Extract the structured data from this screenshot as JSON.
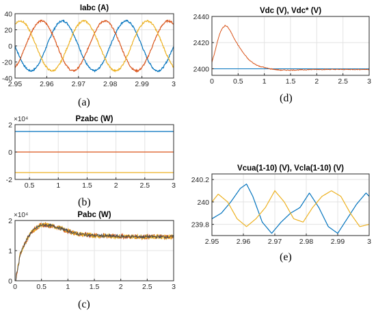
{
  "captions": [
    "(a)",
    "(b)",
    "(c)",
    "(d)",
    "(e)"
  ],
  "chart_data": [
    {
      "id": "a",
      "type": "line",
      "title": "Iabc (A)",
      "xlabel": "",
      "ylabel": "",
      "xlim": [
        2.95,
        3
      ],
      "ylim": [
        -40,
        40
      ],
      "xticks": [
        2.95,
        2.96,
        2.97,
        2.98,
        2.99,
        3
      ],
      "xtick_labels": [
        "2.95",
        "2.96",
        "2.97",
        "2.98",
        "2.99",
        "3"
      ],
      "yticks": [
        -40,
        -20,
        0,
        20,
        40
      ],
      "ytick_labels": [
        "-40",
        "-20",
        "0",
        "20",
        "40"
      ],
      "grid": true,
      "series": [
        {
          "color": "#0072BD",
          "amplitude": 31,
          "frequency_hz": 50,
          "phase_deg": 0,
          "ripple": 2.2
        },
        {
          "color": "#D95319",
          "amplitude": 31,
          "frequency_hz": 50,
          "phase_deg": 120,
          "ripple": 2.2
        },
        {
          "color": "#EDB120",
          "amplitude": 31,
          "frequency_hz": 50,
          "phase_deg": -120,
          "ripple": 2.2
        }
      ]
    },
    {
      "id": "b",
      "type": "line",
      "title": "Pzabc (W)",
      "exponent_label": "×10⁴",
      "xlim": [
        0.25,
        3
      ],
      "ylim": [
        -2,
        2
      ],
      "xticks": [
        0.5,
        1,
        1.5,
        2,
        2.5,
        3
      ],
      "xtick_labels": [
        "0.5",
        "1",
        "1.5",
        "2",
        "2.5",
        "3"
      ],
      "yticks": [
        -2,
        0,
        2
      ],
      "ytick_labels": [
        "-2",
        "0",
        "2"
      ],
      "grid": true,
      "series": [
        {
          "color": "#0072BD",
          "constant": 1.5
        },
        {
          "color": "#D95319",
          "constant": 0
        },
        {
          "color": "#EDB120",
          "constant": -1.5
        }
      ]
    },
    {
      "id": "c",
      "type": "line",
      "title": "Pabc (W)",
      "exponent_label": "×10⁴",
      "xlim": [
        0,
        3
      ],
      "ylim": [
        0,
        2
      ],
      "xticks": [
        0,
        0.5,
        1,
        1.5,
        2,
        2.5,
        3
      ],
      "xtick_labels": [
        "0",
        "0.5",
        "1",
        "1.5",
        "2",
        "2.5",
        "3"
      ],
      "yticks": [
        0,
        1,
        2
      ],
      "ytick_labels": [
        "0",
        "1",
        "2"
      ],
      "grid": true,
      "envelope": {
        "x": [
          0,
          0.05,
          0.1,
          0.2,
          0.3,
          0.4,
          0.5,
          0.6,
          0.8,
          1.0,
          1.2,
          1.5,
          2.0,
          2.5,
          3.0
        ],
        "y": [
          0,
          0.4,
          0.9,
          1.3,
          1.6,
          1.75,
          1.85,
          1.85,
          1.78,
          1.65,
          1.55,
          1.5,
          1.47,
          1.46,
          1.46
        ]
      },
      "series": [
        {
          "color": "#D95319",
          "ripple": 0.08
        },
        {
          "color": "#EDB120",
          "ripple": 0.08
        },
        {
          "color": "#4D4D4D",
          "ripple": 0.05
        }
      ]
    },
    {
      "id": "d",
      "type": "line",
      "title": "Vdc (V), Vdc* (V)",
      "xlim": [
        0,
        3
      ],
      "ylim": [
        2395,
        2440
      ],
      "xticks": [
        0,
        0.5,
        1,
        1.5,
        2,
        2.5,
        3
      ],
      "xtick_labels": [
        "0",
        "0.5",
        "1",
        "1.5",
        "2",
        "2.5",
        "3"
      ],
      "yticks": [
        2400,
        2420,
        2440
      ],
      "ytick_labels": [
        "2400",
        "2420",
        "2440"
      ],
      "grid": true,
      "series": [
        {
          "name": "Vdc*",
          "color": "#0072BD",
          "constant": 2400
        },
        {
          "name": "Vdc",
          "color": "#D95319",
          "x": [
            0,
            0.05,
            0.1,
            0.15,
            0.2,
            0.25,
            0.3,
            0.35,
            0.4,
            0.5,
            0.6,
            0.7,
            0.8,
            0.9,
            1.0,
            1.1,
            1.2,
            1.3,
            1.5,
            2.0,
            2.5,
            3.0
          ],
          "y": [
            2405,
            2412,
            2420,
            2427,
            2431,
            2433,
            2432,
            2429,
            2425,
            2418,
            2412,
            2407,
            2404,
            2402,
            2401,
            2400,
            2399.5,
            2399,
            2399,
            2399.5,
            2399.5,
            2399.5
          ],
          "noise": 0.6
        }
      ]
    },
    {
      "id": "e",
      "type": "line",
      "title": "Vcua(1-10) (V), Vcla(1-10) (V)",
      "xlim": [
        2.95,
        3
      ],
      "ylim": [
        239.7,
        240.25
      ],
      "xticks": [
        2.95,
        2.96,
        2.97,
        2.98,
        2.99,
        3
      ],
      "xtick_labels": [
        "2.95",
        "2.96",
        "2.97",
        "2.98",
        "2.99",
        "3"
      ],
      "yticks": [
        239.8,
        240,
        240.2
      ],
      "ytick_labels": [
        "239.8",
        "240",
        "240.2"
      ],
      "grid": true,
      "series": [
        {
          "color": "#0072BD",
          "x": [
            2.95,
            2.953,
            2.956,
            2.959,
            2.961,
            2.963,
            2.966,
            2.969,
            2.972,
            2.975,
            2.978,
            2.981,
            2.984,
            2.987,
            2.99,
            2.993,
            2.996,
            2.999,
            3.0
          ],
          "y": [
            239.85,
            239.9,
            240.0,
            240.12,
            240.16,
            240.05,
            239.82,
            239.72,
            239.82,
            239.9,
            239.95,
            240.08,
            239.95,
            239.78,
            239.72,
            239.85,
            239.98,
            240.08,
            240.05
          ]
        },
        {
          "color": "#EDB120",
          "x": [
            2.95,
            2.952,
            2.955,
            2.958,
            2.961,
            2.964,
            2.967,
            2.97,
            2.973,
            2.976,
            2.979,
            2.982,
            2.985,
            2.988,
            2.991,
            2.994,
            2.997,
            3.0
          ],
          "y": [
            240.0,
            240.07,
            240.0,
            239.85,
            239.78,
            239.85,
            239.95,
            240.1,
            240.0,
            239.85,
            239.82,
            239.95,
            240.05,
            240.1,
            240.05,
            239.9,
            239.78,
            239.8
          ]
        }
      ]
    }
  ]
}
